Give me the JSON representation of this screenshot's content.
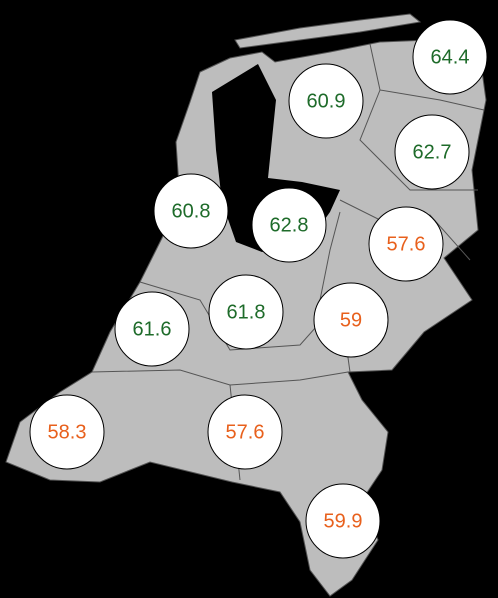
{
  "map": {
    "regions": [
      {
        "value": 64.4,
        "color": "#1e6b2a"
      },
      {
        "value": 60.9,
        "color": "#1e6b2a"
      },
      {
        "value": 62.7,
        "color": "#1e6b2a"
      },
      {
        "value": 60.8,
        "color": "#1e6b2a"
      },
      {
        "value": 62.8,
        "color": "#1e6b2a"
      },
      {
        "value": 57.6,
        "color": "#e8601c"
      },
      {
        "value": 61.6,
        "color": "#1e6b2a"
      },
      {
        "value": 61.8,
        "color": "#1e6b2a"
      },
      {
        "value": 59,
        "color": "#e8601c"
      },
      {
        "value": 58.3,
        "color": "#e8601c"
      },
      {
        "value": 57.6,
        "color": "#e8601c"
      },
      {
        "value": 59.9,
        "color": "#e8601c"
      }
    ]
  }
}
